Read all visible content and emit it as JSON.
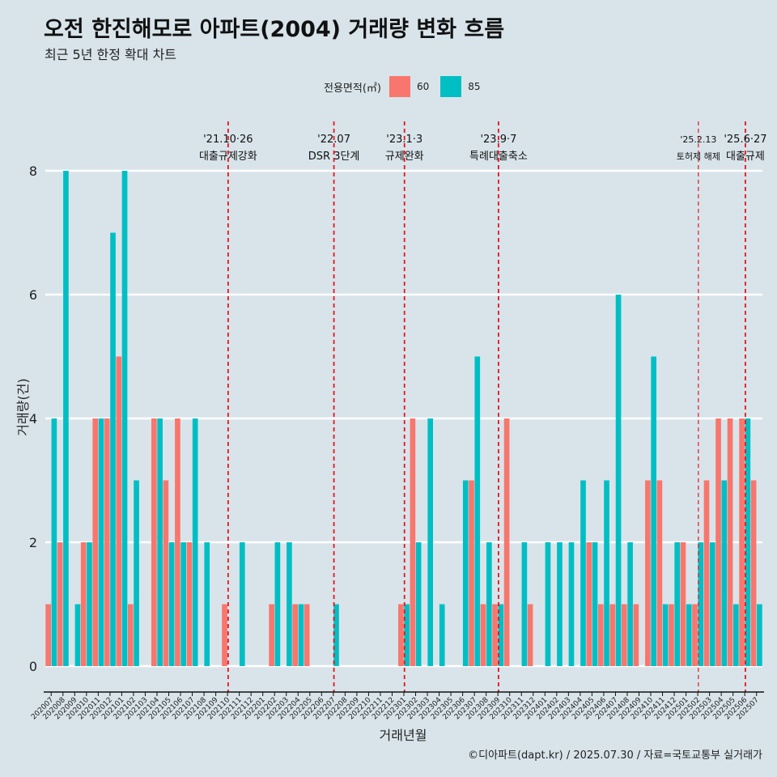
{
  "chart_data": {
    "type": "bar",
    "title": "오전 한진해모로 아파트(2004) 거래량 변화 흐름",
    "subtitle": "최근 5년 한정 확대 차트",
    "xlabel": "거래년월",
    "ylabel": "거래량(건)",
    "ylim": [
      0,
      8
    ],
    "yticks": [
      0,
      2,
      4,
      6,
      8
    ],
    "legend_title": "전용면적(㎡)",
    "legend_position": "top",
    "categories": [
      "202007",
      "202008",
      "202009",
      "202010",
      "202011",
      "202012",
      "202101",
      "202102",
      "202103",
      "202104",
      "202105",
      "202106",
      "202107",
      "202108",
      "202109",
      "202110",
      "202111",
      "202112",
      "202201",
      "202202",
      "202203",
      "202204",
      "202205",
      "202206",
      "202207",
      "202208",
      "202209",
      "202210",
      "202211",
      "202212",
      "202301",
      "202302",
      "202303",
      "202304",
      "202305",
      "202306",
      "202307",
      "202308",
      "202309",
      "202310",
      "202311",
      "202312",
      "202401",
      "202402",
      "202403",
      "202404",
      "202405",
      "202406",
      "202407",
      "202408",
      "202409",
      "202410",
      "202411",
      "202412",
      "202501",
      "202502",
      "202503",
      "202504",
      "202505",
      "202506",
      "202507"
    ],
    "series": [
      {
        "name": "60",
        "color": "#f8766d",
        "values": [
          1,
          2,
          0,
          2,
          4,
          4,
          5,
          1,
          0,
          4,
          3,
          4,
          2,
          0,
          0,
          1,
          0,
          0,
          0,
          1,
          0,
          1,
          1,
          0,
          0,
          0,
          0,
          0,
          0,
          0,
          1,
          4,
          0,
          0,
          0,
          0,
          3,
          1,
          1,
          4,
          0,
          1,
          0,
          0,
          0,
          0,
          2,
          1,
          1,
          1,
          1,
          3,
          3,
          1,
          2,
          1,
          3,
          4,
          4,
          4,
          3
        ]
      },
      {
        "name": "85",
        "color": "#00bfc4",
        "values": [
          4,
          8,
          1,
          2,
          4,
          7,
          8,
          3,
          0,
          4,
          2,
          2,
          4,
          2,
          0,
          0,
          2,
          0,
          0,
          2,
          2,
          1,
          0,
          0,
          1,
          0,
          0,
          0,
          0,
          0,
          1,
          2,
          4,
          1,
          0,
          3,
          5,
          2,
          1,
          0,
          2,
          0,
          2,
          2,
          2,
          3,
          2,
          3,
          6,
          2,
          0,
          5,
          1,
          2,
          1,
          2,
          2,
          3,
          1,
          4,
          1
        ]
      }
    ],
    "annotations": [
      {
        "index": 15,
        "date": "'21.10·26",
        "label": "대출규제강화",
        "style": "bold"
      },
      {
        "index": 24,
        "date": "'22.07",
        "label": "DSR 3단계",
        "style": "bold"
      },
      {
        "index": 30,
        "date": "'23.1·3",
        "label": "규제완화",
        "style": "bold"
      },
      {
        "index": 38,
        "date": "'23.9·7",
        "label": "특례대출축소",
        "style": "bold"
      },
      {
        "index": 55,
        "date": "'25.2.13",
        "label": "토허제 해제",
        "style": "thin"
      },
      {
        "index": 59,
        "date": "'25.6·27",
        "label": "대출규제",
        "style": "bold"
      }
    ]
  },
  "caption": "©디아파트(dapt.kr) / 2025.07.30 / 자료=국토교통부 실거래가"
}
